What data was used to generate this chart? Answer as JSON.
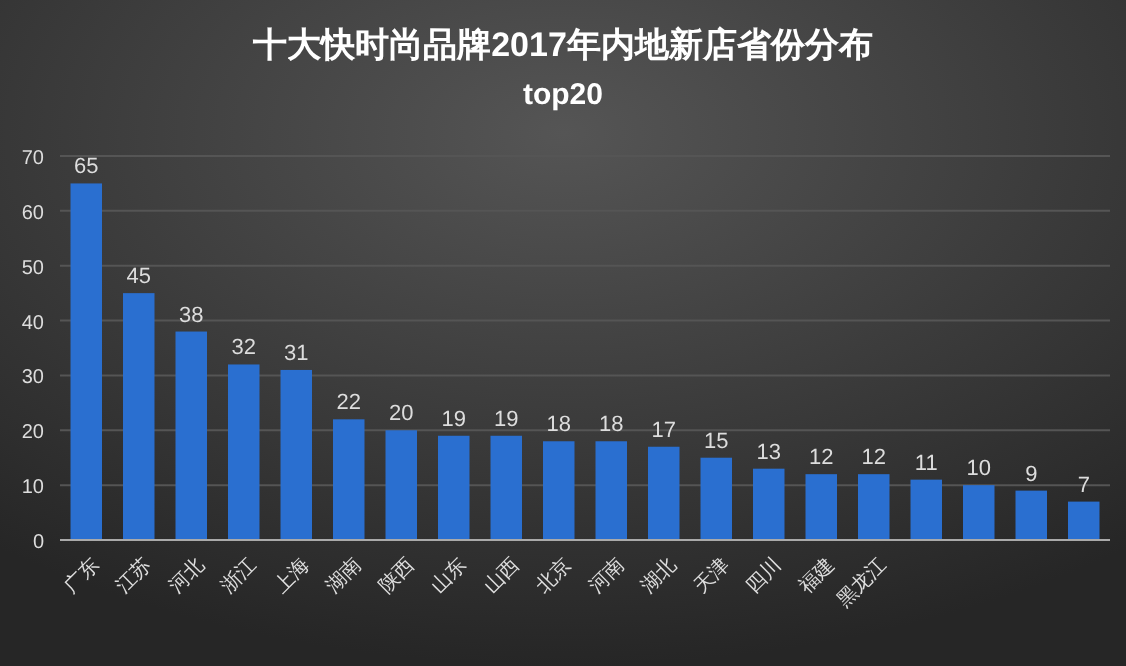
{
  "chart_data": {
    "type": "bar",
    "title": "十大快时尚品牌2017年内地新店省份分布",
    "subtitle": "top20",
    "categories": [
      "广东",
      "江苏",
      "河北",
      "浙江",
      "上海",
      "湖南",
      "陕西",
      "山东",
      "山西",
      "北京",
      "河南",
      "湖北",
      "天津",
      "四川",
      "福建",
      "黑龙江",
      null,
      null,
      null,
      null
    ],
    "values": [
      65,
      45,
      38,
      32,
      31,
      22,
      20,
      19,
      19,
      18,
      18,
      17,
      15,
      13,
      12,
      12,
      11,
      10,
      9,
      7
    ],
    "color": "#2a6fd0",
    "ylim": [
      0,
      70
    ],
    "yticks": [
      0,
      10,
      20,
      30,
      40,
      50,
      60,
      70
    ],
    "grid": "y",
    "data_labels": true
  }
}
